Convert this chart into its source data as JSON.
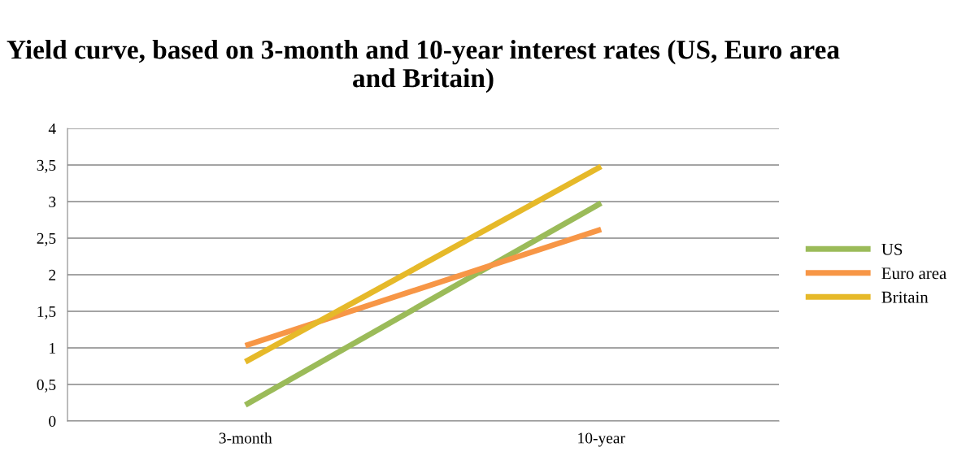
{
  "chart_data": {
    "type": "line",
    "title": "Yield curve, based on 3-month and 10-year interest rates (US, Euro area and Britain)",
    "categories": [
      "3-month",
      "10-year"
    ],
    "series": [
      {
        "name": "US",
        "color": "#9bbb59",
        "values": [
          0.22,
          2.98
        ]
      },
      {
        "name": "Euro area",
        "color": "#f79646",
        "values": [
          1.03,
          2.62
        ]
      },
      {
        "name": "Britain",
        "color": "#e6b929",
        "values": [
          0.81,
          3.48
        ]
      }
    ],
    "ylim": [
      0,
      4
    ],
    "yticks": [
      0,
      {
        "value": 0.5,
        "label": "0,5"
      },
      1,
      {
        "value": 1.5,
        "label": "1,5"
      },
      2,
      {
        "value": 2.5,
        "label": "2,5"
      },
      3,
      {
        "value": 3.5,
        "label": "3,5"
      },
      4
    ],
    "grid": "y",
    "legend": "right",
    "marker": "none",
    "line_style": "solid"
  }
}
